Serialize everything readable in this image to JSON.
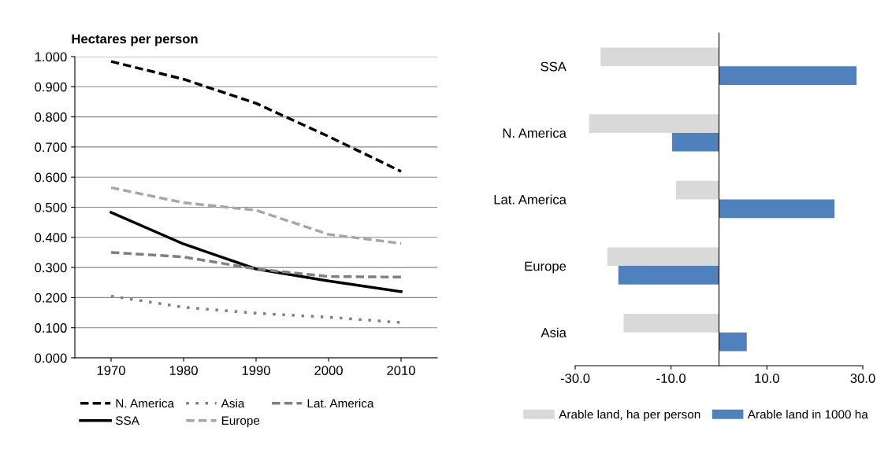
{
  "chart_data": [
    {
      "type": "line",
      "ylabel": "Hectares per person",
      "categories": [
        "1970",
        "1980",
        "1990",
        "2000",
        "2010"
      ],
      "ylim": [
        0,
        1
      ],
      "yticks": [
        {
          "value": 0,
          "label": "0.000"
        },
        {
          "value": 0.1,
          "label": "0.100"
        },
        {
          "value": 0.2,
          "label": "0.200"
        },
        {
          "value": 0.3,
          "label": "0.300"
        },
        {
          "value": 0.4,
          "label": "0.400"
        },
        {
          "value": 0.5,
          "label": "0.500"
        },
        {
          "value": 0.6,
          "label": "0.600"
        },
        {
          "value": 0.7,
          "label": "0.700"
        },
        {
          "value": 0.8,
          "label": "0.800"
        },
        {
          "value": 0.9,
          "label": "0.900"
        },
        {
          "value": 1,
          "label": "1.000"
        }
      ],
      "grid": "y",
      "legend": "bottom",
      "marker": "none",
      "series": [
        {
          "name": "N. America",
          "color": "#000000",
          "line_style": "dashed",
          "values": [
            0.984,
            0.925,
            0.845,
            0.735,
            0.619
          ]
        },
        {
          "name": "SSA",
          "color": "#000000",
          "line_style": "solid",
          "values": [
            0.483,
            0.378,
            0.295,
            0.255,
            0.22
          ]
        },
        {
          "name": "Asia",
          "color": "#7f7f7f",
          "line_style": "dotted",
          "values": [
            0.205,
            0.168,
            0.148,
            0.135,
            0.117
          ]
        },
        {
          "name": "Europe",
          "color": "#a6a6a6",
          "line_style": "dashed",
          "values": [
            0.565,
            0.515,
            0.49,
            0.41,
            0.38
          ]
        },
        {
          "name": "Lat. America",
          "color": "#7f7f7f",
          "line_style": "dashed",
          "values": [
            0.35,
            0.335,
            0.295,
            0.27,
            0.268
          ]
        }
      ]
    },
    {
      "type": "bar",
      "orientation": "horizontal",
      "categories": [
        "SSA",
        "N. America",
        "Lat. America",
        "Europe",
        "Asia"
      ],
      "xlim": [
        -30,
        30
      ],
      "xticks": [
        {
          "value": -30,
          "label": "-30.0"
        },
        {
          "value": -10,
          "label": "-10.0"
        },
        {
          "value": 10,
          "label": "10.0"
        },
        {
          "value": 30,
          "label": "30.0"
        }
      ],
      "legend": "bottom",
      "series": [
        {
          "name": "Arable land, ha per person",
          "color": "#d9d9d9",
          "values": [
            -24.7,
            -27.1,
            -9.0,
            -23.3,
            -19.9
          ]
        },
        {
          "name": "Arable land in 1000 ha",
          "color": "#4f81bd",
          "values": [
            28.7,
            -9.8,
            24.1,
            -21.0,
            5.8
          ]
        }
      ]
    }
  ]
}
